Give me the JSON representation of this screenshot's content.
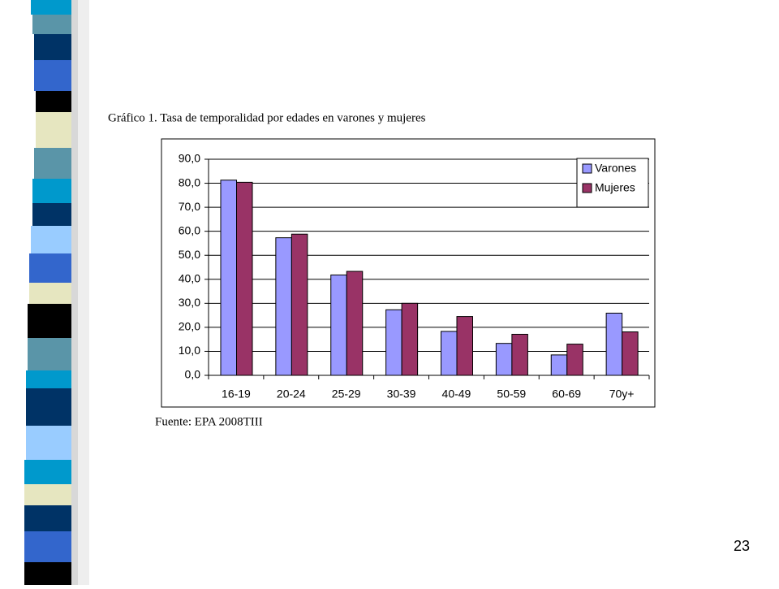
{
  "chart_data": {
    "type": "bar",
    "title": "Gráfico 1. Tasa de temporalidad por edades en varones y mujeres",
    "source": "Fuente: EPA 2008TIII",
    "categories": [
      "16-19",
      "20-24",
      "25-29",
      "30-39",
      "40-49",
      "50-59",
      "60-69",
      "70y+"
    ],
    "series": [
      {
        "name": "Varones",
        "color": "#9999ff",
        "values": [
          81.3,
          57.3,
          41.8,
          27.3,
          18.3,
          13.3,
          8.5,
          25.9
        ]
      },
      {
        "name": "Mujeres",
        "color": "#993366",
        "values": [
          80.4,
          58.8,
          43.3,
          30.0,
          24.5,
          17.1,
          13.0,
          18.1
        ]
      }
    ],
    "ylim": [
      0,
      90
    ],
    "yticks": [
      {
        "value": 0,
        "label": "0,0"
      },
      {
        "value": 10,
        "label": "10,0"
      },
      {
        "value": 20,
        "label": "20,0"
      },
      {
        "value": 30,
        "label": "30,0"
      },
      {
        "value": 40,
        "label": "40,0"
      },
      {
        "value": 50,
        "label": "50,0"
      },
      {
        "value": 60,
        "label": "60,0"
      },
      {
        "value": 70,
        "label": "70,0"
      },
      {
        "value": 80,
        "label": "80,0"
      },
      {
        "value": 90,
        "label": "90,0"
      }
    ],
    "grid": true,
    "legend": "top-right"
  },
  "slide_number": 23
}
